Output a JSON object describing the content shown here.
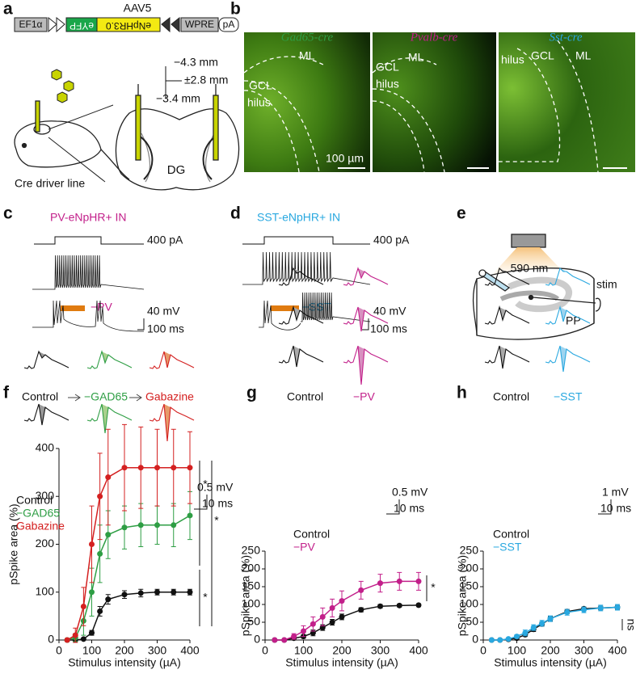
{
  "panels": {
    "a": {
      "label": "a",
      "virus": "AAV5",
      "promoter": "EF1α",
      "reporter": "eYFP",
      "opsin": "eNpHR3.0",
      "wpre": "WPRE",
      "polya": "pA",
      "coords": [
        "−4.3 mm",
        "±2.8 mm",
        "−3.4 mm"
      ],
      "region": "DG",
      "mouse": "Cre driver line"
    },
    "b": {
      "label": "b",
      "lines": [
        "Gad65-cre",
        "Pvalb-cre",
        "Sst-cre"
      ],
      "regions": [
        "GCL",
        "ML",
        "hilus"
      ],
      "scale": "100 µm"
    },
    "c": {
      "label": "c",
      "title": "PV-eNpHR+ IN",
      "current": "400 pA",
      "light": "−PV",
      "scale_v": "40 mV",
      "scale_t": "100 ms"
    },
    "d": {
      "label": "d",
      "title": "SST-eNpHR+ IN",
      "current": "400 pA",
      "light": "−SST",
      "scale_v": "40 mV",
      "scale_t": "100 ms"
    },
    "e": {
      "label": "e",
      "wavelength": "590 nm",
      "stim": "stim",
      "pathway": "PP"
    },
    "f": {
      "label": "f",
      "conditions": [
        "Control",
        "−GAD65",
        "Gabazine"
      ],
      "scale_v": "0.5 mV",
      "scale_t": "10 ms"
    },
    "g": {
      "label": "g",
      "conditions": [
        "Control",
        "−PV"
      ],
      "scale_v": "0.5 mV",
      "scale_t": "10 ms"
    },
    "h": {
      "label": "h",
      "conditions": [
        "Control",
        "−SST"
      ],
      "scale_v": "1 mV",
      "scale_t": "10 ms"
    }
  },
  "chart_data": [
    {
      "type": "line",
      "xlabel": "Stimulus intensity (µA)",
      "ylabel": "pSpike area (%)",
      "x": [
        25,
        50,
        75,
        100,
        125,
        150,
        200,
        250,
        300,
        350,
        400
      ],
      "xlim": [
        0,
        400
      ],
      "xticks": [
        0,
        100,
        200,
        300,
        400
      ],
      "ylim": [
        0,
        400
      ],
      "yticks": [
        0,
        100,
        200,
        300,
        400
      ],
      "series": [
        {
          "name": "Control",
          "color": "#111111",
          "values": [
            0,
            0,
            2,
            15,
            60,
            85,
            95,
            98,
            100,
            100,
            100
          ],
          "errors": [
            0,
            0,
            2,
            5,
            10,
            10,
            8,
            8,
            6,
            6,
            6
          ]
        },
        {
          "name": "−GAD65",
          "color": "#2e9e44",
          "values": [
            0,
            5,
            40,
            100,
            180,
            220,
            235,
            240,
            240,
            240,
            260
          ],
          "errors": [
            2,
            8,
            30,
            50,
            60,
            50,
            45,
            45,
            40,
            45,
            50
          ]
        },
        {
          "name": "Gabazine",
          "color": "#d42020",
          "values": [
            0,
            10,
            70,
            200,
            300,
            340,
            360,
            360,
            360,
            360,
            360
          ],
          "errors": [
            3,
            15,
            40,
            80,
            90,
            100,
            90,
            85,
            80,
            80,
            75
          ]
        }
      ],
      "annotations": [
        "*",
        "*",
        "*"
      ]
    },
    {
      "type": "line",
      "xlabel": "Stimulus intensity (µA)",
      "ylabel": "pSpike area (%)",
      "x": [
        25,
        50,
        75,
        100,
        125,
        150,
        175,
        200,
        250,
        300,
        350,
        400
      ],
      "xlim": [
        0,
        400
      ],
      "xticks": [
        0,
        100,
        200,
        300,
        400
      ],
      "ylim": [
        0,
        250
      ],
      "yticks": [
        0,
        50,
        100,
        150,
        200,
        250
      ],
      "series": [
        {
          "name": "Control",
          "color": "#111111",
          "values": [
            0,
            0,
            5,
            10,
            20,
            35,
            50,
            65,
            85,
            95,
            97,
            98
          ],
          "errors": [
            0,
            0,
            3,
            5,
            8,
            8,
            8,
            8,
            6,
            5,
            4,
            4
          ]
        },
        {
          "name": "−PV",
          "color": "#c21f8a",
          "values": [
            0,
            0,
            10,
            25,
            45,
            65,
            90,
            110,
            140,
            160,
            165,
            165
          ],
          "errors": [
            0,
            2,
            8,
            15,
            20,
            25,
            25,
            28,
            25,
            25,
            25,
            25
          ]
        }
      ],
      "annotations": [
        "*"
      ]
    },
    {
      "type": "line",
      "xlabel": "Stimulus intensity (µA)",
      "ylabel": "pSpike area (%)",
      "x": [
        25,
        50,
        75,
        100,
        125,
        150,
        175,
        200,
        250,
        300,
        350,
        400
      ],
      "xlim": [
        0,
        400
      ],
      "xticks": [
        0,
        100,
        200,
        300,
        400
      ],
      "ylim": [
        0,
        250
      ],
      "yticks": [
        0,
        50,
        100,
        150,
        200,
        250
      ],
      "series": [
        {
          "name": "Control",
          "color": "#111111",
          "values": [
            0,
            0,
            2,
            5,
            15,
            30,
            45,
            60,
            80,
            88,
            90,
            92
          ],
          "errors": [
            0,
            0,
            2,
            3,
            5,
            6,
            6,
            6,
            6,
            5,
            5,
            5
          ]
        },
        {
          "name": "−SST",
          "color": "#29a8e0",
          "values": [
            0,
            0,
            3,
            10,
            20,
            35,
            47,
            60,
            78,
            85,
            90,
            92
          ],
          "errors": [
            0,
            1,
            3,
            5,
            8,
            8,
            8,
            8,
            8,
            8,
            8,
            8
          ]
        }
      ],
      "annotations": [
        "ns"
      ]
    }
  ]
}
